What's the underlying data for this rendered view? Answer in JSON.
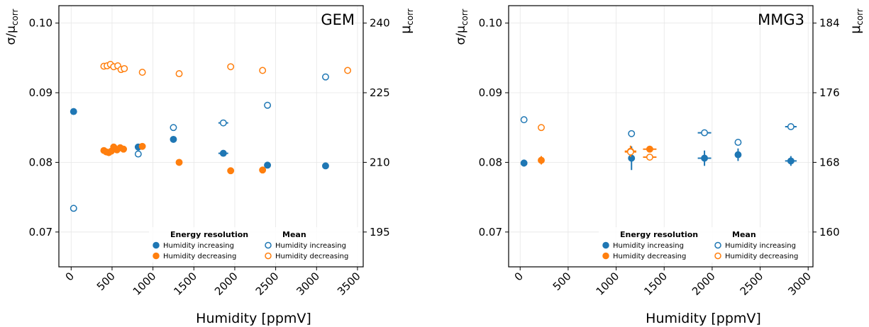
{
  "colors": {
    "increasing": "#1f77b4",
    "decreasing": "#ff7f0e"
  },
  "chart_data": [
    {
      "type": "scatter",
      "title": "GEM",
      "xlabel": "Humidity [ppmV]",
      "ylabel_left": "σ/μ",
      "ylabel_left_sub": "corr",
      "ylabel_right": "μ",
      "ylabel_right_sub": "corr",
      "xlim": [
        -150,
        3570
      ],
      "ylim_left": [
        0.065,
        0.1025
      ],
      "ylim_right": [
        187.5,
        243.75
      ],
      "xticks": [
        0,
        500,
        1000,
        1500,
        2000,
        2500,
        3000,
        3500
      ],
      "xtick_labels": [
        "0",
        "500",
        "1000",
        "1500",
        "2000",
        "2500",
        "3000",
        "3500"
      ],
      "yticks_left": [
        0.07,
        0.08,
        0.09,
        0.1
      ],
      "ytick_labels_left": [
        "0.07",
        "0.08",
        "0.09",
        "0.10"
      ],
      "yticks_right": [
        195,
        210,
        225,
        240
      ],
      "ytick_labels_right": [
        "195",
        "210",
        "225",
        "240"
      ],
      "grid": true,
      "legend_position": "bottom-right",
      "legend": {
        "resolution_title": "Energy resolution",
        "mean_title": "Mean",
        "increasing_label": "Humidity increasing",
        "decreasing_label": "Humidity decreasing"
      },
      "series": [
        {
          "name": "Humidity increasing",
          "group": "Energy resolution",
          "axis": "left",
          "color": "#1f77b4",
          "filled": true,
          "x": [
            30,
            820,
            1250,
            1860,
            2400,
            3110
          ],
          "y": [
            0.0873,
            0.0822,
            0.0833,
            0.0813,
            0.0796,
            0.0795
          ],
          "xerr": [
            0,
            0,
            0,
            60,
            40,
            0
          ],
          "yerr": [
            0,
            0,
            0,
            0,
            0,
            0
          ]
        },
        {
          "name": "Humidity decreasing",
          "group": "Energy resolution",
          "axis": "left",
          "color": "#ff7f0e",
          "filled": true,
          "x": [
            400,
            430,
            460,
            490,
            520,
            560,
            600,
            640,
            870,
            1320,
            1950,
            2340
          ],
          "y": [
            0.0817,
            0.0815,
            0.0814,
            0.0816,
            0.0822,
            0.0818,
            0.0821,
            0.0819,
            0.0823,
            0.08,
            0.0788,
            0.0789
          ],
          "xerr": [
            0,
            0,
            0,
            0,
            0,
            0,
            0,
            0,
            0,
            0,
            0,
            40
          ],
          "yerr": [
            0,
            0,
            0,
            0,
            0,
            0,
            0,
            0,
            0,
            0,
            0,
            0
          ]
        },
        {
          "name": "Humidity increasing",
          "group": "Mean",
          "axis": "right",
          "color": "#1f77b4",
          "filled": false,
          "x": [
            30,
            820,
            1250,
            1860,
            2400,
            3110
          ],
          "y": [
            200.1,
            211.8,
            217.5,
            218.5,
            222.3,
            228.4
          ],
          "xerr": [
            0,
            0,
            0,
            60,
            40,
            0
          ],
          "yerr": [
            0,
            0,
            0,
            0,
            0,
            0
          ]
        },
        {
          "name": "Humidity decreasing",
          "group": "Mean",
          "axis": "right",
          "color": "#ff7f0e",
          "filled": false,
          "x": [
            400,
            440,
            480,
            520,
            570,
            610,
            650,
            870,
            1320,
            1950,
            2340,
            3380
          ],
          "y": [
            230.7,
            230.8,
            231.1,
            230.6,
            230.8,
            230.0,
            230.2,
            229.4,
            229.1,
            230.6,
            229.8,
            229.8
          ],
          "xerr": [
            0,
            0,
            0,
            0,
            0,
            0,
            0,
            0,
            0,
            0,
            40,
            0
          ],
          "yerr": [
            0,
            0,
            0,
            0,
            0,
            0,
            0,
            0,
            0,
            0,
            0,
            0
          ]
        }
      ]
    },
    {
      "type": "scatter",
      "title": "MMG3",
      "xlabel": "Humidity [ppmV]",
      "ylabel_left": "σ/μ",
      "ylabel_left_sub": "corr",
      "ylabel_right": "μ",
      "ylabel_right_sub": "corr",
      "xlim": [
        -120,
        3050
      ],
      "ylim_left": [
        0.065,
        0.1025
      ],
      "ylim_right": [
        156,
        186
      ],
      "xticks": [
        0,
        500,
        1000,
        1500,
        2000,
        2500,
        3000
      ],
      "xtick_labels": [
        "0",
        "500",
        "1000",
        "1500",
        "2000",
        "2500",
        "3000"
      ],
      "yticks_left": [
        0.07,
        0.08,
        0.09,
        0.1
      ],
      "ytick_labels_left": [
        "0.07",
        "0.08",
        "0.09",
        "0.10"
      ],
      "yticks_right": [
        160,
        168,
        176,
        184
      ],
      "ytick_labels_right": [
        "160",
        "168",
        "176",
        "184"
      ],
      "grid": true,
      "legend_position": "bottom-right",
      "legend": {
        "resolution_title": "Energy resolution",
        "mean_title": "Mean",
        "increasing_label": "Humidity increasing",
        "decreasing_label": "Humidity decreasing"
      },
      "series": [
        {
          "name": "Humidity increasing",
          "group": "Energy resolution",
          "axis": "left",
          "color": "#1f77b4",
          "filled": true,
          "x": [
            40,
            1160,
            1920,
            2270,
            2820
          ],
          "y": [
            0.0799,
            0.0806,
            0.0806,
            0.0811,
            0.0802
          ],
          "xerr": [
            0,
            0,
            70,
            0,
            60
          ],
          "yerr": [
            0.0005,
            0.0017,
            0.0011,
            0.0009,
            0.0007
          ]
        },
        {
          "name": "Humidity decreasing",
          "group": "Energy resolution",
          "axis": "left",
          "color": "#ff7f0e",
          "filled": true,
          "x": [
            220,
            1150,
            1350
          ],
          "y": [
            0.0803,
            0.0816,
            0.0819
          ],
          "xerr": [
            0,
            60,
            70
          ],
          "yerr": [
            0.0006,
            0.0008,
            0.0004
          ]
        },
        {
          "name": "Humidity increasing",
          "group": "Mean",
          "axis": "right",
          "color": "#1f77b4",
          "filled": false,
          "x": [
            40,
            1160,
            1920,
            2270,
            2820
          ],
          "y": [
            172.9,
            171.3,
            171.4,
            170.3,
            172.1
          ],
          "xerr": [
            0,
            0,
            70,
            0,
            60
          ],
          "yerr": [
            0,
            0,
            0,
            0,
            0
          ]
        },
        {
          "name": "Humidity decreasing",
          "group": "Mean",
          "axis": "right",
          "color": "#ff7f0e",
          "filled": false,
          "x": [
            220,
            1150,
            1350
          ],
          "y": [
            172.0,
            169.2,
            168.6
          ],
          "xerr": [
            0,
            60,
            70
          ],
          "yerr": [
            0,
            0,
            0
          ]
        }
      ]
    }
  ]
}
